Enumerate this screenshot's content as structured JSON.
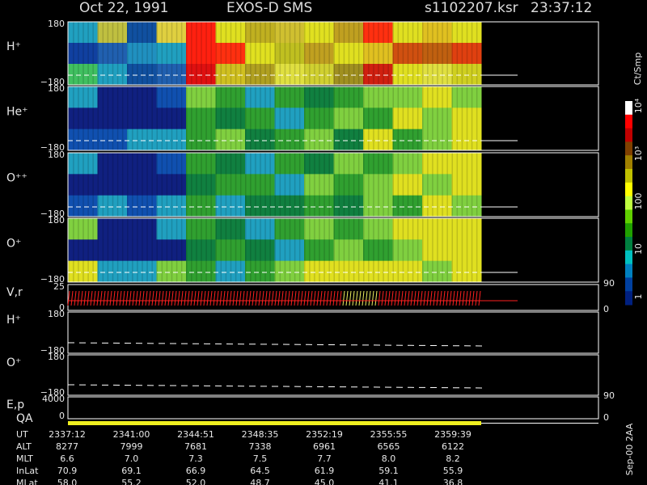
{
  "header": {
    "date": "Oct 22, 1991",
    "instrument": "EXOS-D SMS",
    "file": "s1102207.ksr",
    "time": "23:37:12"
  },
  "spectrogram_panels": [
    {
      "label": "H⁺",
      "top_tick": "180",
      "bottom_tick": "−180",
      "cells": [
        [
          "#20a0c0",
          "#1040a0",
          "#40c060"
        ],
        [
          "#c0c040",
          "#2060b0",
          "#20a0c0"
        ],
        [
          "#1050a0",
          "#2090c0",
          "#1050a0"
        ],
        [
          "#e0d040",
          "#20a0c0",
          "#2060b0"
        ],
        [
          "#ff2010",
          "#ff2010",
          "#e01010"
        ],
        [
          "#e0e020",
          "#ff3010",
          "#d0c020"
        ],
        [
          "#c0b020",
          "#e0e020",
          "#b0a020"
        ],
        [
          "#d0c030",
          "#c0c020",
          "#e0e040"
        ],
        [
          "#e0e020",
          "#c0a020",
          "#d0d030"
        ],
        [
          "#c0a020",
          "#e0e020",
          "#a09020"
        ],
        [
          "#ff3010",
          "#e0c020",
          "#d02010"
        ],
        [
          "#e0e020",
          "#d05010",
          "#e0e020"
        ],
        [
          "#e0c020",
          "#c06010",
          "#e0e040"
        ],
        [
          "#e0e020",
          "#e04010",
          "#d0d020"
        ]
      ]
    },
    {
      "label": "He⁺",
      "top_tick": "180",
      "bottom_tick": "−180",
      "cells": [
        [
          "#20a0c0",
          "#102080",
          "#1050b0"
        ],
        [
          "#102080",
          "#102080",
          "#1050b0"
        ],
        [
          "#102080",
          "#102080",
          "#20a0c0"
        ],
        [
          "#1050b0",
          "#102080",
          "#20a0c0"
        ],
        [
          "#80d040",
          "#30a030",
          "#30a030"
        ],
        [
          "#30a030",
          "#108040",
          "#80d040"
        ],
        [
          "#20a0c0",
          "#30a030",
          "#108040"
        ],
        [
          "#30a030",
          "#20a0c0",
          "#30a030"
        ],
        [
          "#108040",
          "#30a030",
          "#80d040"
        ],
        [
          "#30a030",
          "#80d040",
          "#108040"
        ],
        [
          "#80d040",
          "#30a030",
          "#e0e020"
        ],
        [
          "#80d040",
          "#e0e020",
          "#30a030"
        ],
        [
          "#e0e020",
          "#80d040",
          "#80d040"
        ],
        [
          "#80d040",
          "#e0e020",
          "#e0e020"
        ]
      ]
    },
    {
      "label": "O⁺⁺",
      "top_tick": "180",
      "bottom_tick": "−180",
      "cells": [
        [
          "#20a0c0",
          "#102080",
          "#1050b0"
        ],
        [
          "#102080",
          "#102080",
          "#20a0c0"
        ],
        [
          "#102080",
          "#102080",
          "#1050b0"
        ],
        [
          "#1050b0",
          "#102080",
          "#20a0c0"
        ],
        [
          "#30a030",
          "#108040",
          "#30a030"
        ],
        [
          "#108040",
          "#30a030",
          "#20a0c0"
        ],
        [
          "#20a0c0",
          "#30a030",
          "#108040"
        ],
        [
          "#30a030",
          "#20a0c0",
          "#108040"
        ],
        [
          "#108040",
          "#80d040",
          "#30a030"
        ],
        [
          "#80d040",
          "#30a030",
          "#108040"
        ],
        [
          "#30a030",
          "#80d040",
          "#80d040"
        ],
        [
          "#80d040",
          "#e0e020",
          "#30a030"
        ],
        [
          "#e0e020",
          "#80d040",
          "#e0e020"
        ],
        [
          "#e0e020",
          "#e0e020",
          "#80d040"
        ]
      ]
    },
    {
      "label": "O⁺",
      "top_tick": "180",
      "bottom_tick": "−180",
      "cells": [
        [
          "#80d040",
          "#102080",
          "#e0e020"
        ],
        [
          "#102080",
          "#102080",
          "#20a0c0"
        ],
        [
          "#102080",
          "#102080",
          "#20a0c0"
        ],
        [
          "#20a0c0",
          "#102080",
          "#80d040"
        ],
        [
          "#30a030",
          "#108040",
          "#30a030"
        ],
        [
          "#108040",
          "#30a030",
          "#20a0c0"
        ],
        [
          "#20a0c0",
          "#108040",
          "#30a030"
        ],
        [
          "#30a030",
          "#20a0c0",
          "#80d040"
        ],
        [
          "#80d040",
          "#30a030",
          "#e0e020"
        ],
        [
          "#30a030",
          "#80d040",
          "#e0e020"
        ],
        [
          "#80d040",
          "#30a030",
          "#e0e020"
        ],
        [
          "#e0e020",
          "#80d040",
          "#e0e020"
        ],
        [
          "#e0e020",
          "#e0e020",
          "#80d040"
        ],
        [
          "#e0e020",
          "#e0e020",
          "#e0e020"
        ]
      ]
    }
  ],
  "line_panels": [
    {
      "label": "V,r",
      "top_tick": "25",
      "bottom_tick": "0",
      "right_ticks": [
        "90",
        "0"
      ]
    },
    {
      "label": "H⁺",
      "top_tick": "180",
      "bottom_tick": "−180"
    },
    {
      "label": "O⁺",
      "top_tick": "180",
      "bottom_tick": "−180"
    },
    {
      "label": "E,p",
      "top_tick": "4000",
      "bottom_tick": "0",
      "right_ticks": [
        "90",
        "0"
      ]
    }
  ],
  "qa_label": "QA",
  "colorbar": {
    "title": "Ct/Smp",
    "colors": [
      "#ffffff",
      "#ff0000",
      "#c00000",
      "#804000",
      "#a08000",
      "#c0c000",
      "#ffff00",
      "#c0ff40",
      "#60d000",
      "#20a000",
      "#008040",
      "#00c0c0",
      "#0080c0",
      "#0040a0",
      "#002080"
    ],
    "ticks": [
      "10⁴",
      "10³",
      "100",
      "10",
      "1"
    ]
  },
  "table": {
    "rows": [
      {
        "label": "UT",
        "values": [
          "2337:12",
          "2341:00",
          "2344:51",
          "2348:35",
          "2352:19",
          "2355:55",
          "2359:39"
        ]
      },
      {
        "label": "ALT",
        "values": [
          "8277",
          "7999",
          "7681",
          "7338",
          "6961",
          "6565",
          "6122"
        ]
      },
      {
        "label": "MLT",
        "values": [
          "6.6",
          "7.0",
          "7.3",
          "7.5",
          "7.7",
          "8.0",
          "8.2"
        ]
      },
      {
        "label": "InLat",
        "values": [
          "70.9",
          "69.1",
          "66.9",
          "64.5",
          "61.9",
          "59.1",
          "55.9"
        ]
      },
      {
        "label": "MLat",
        "values": [
          "58.0",
          "55.2",
          "52.0",
          "48.7",
          "45.0",
          "41.1",
          "36.8"
        ]
      }
    ]
  },
  "footer": "Sep-00 2AA"
}
